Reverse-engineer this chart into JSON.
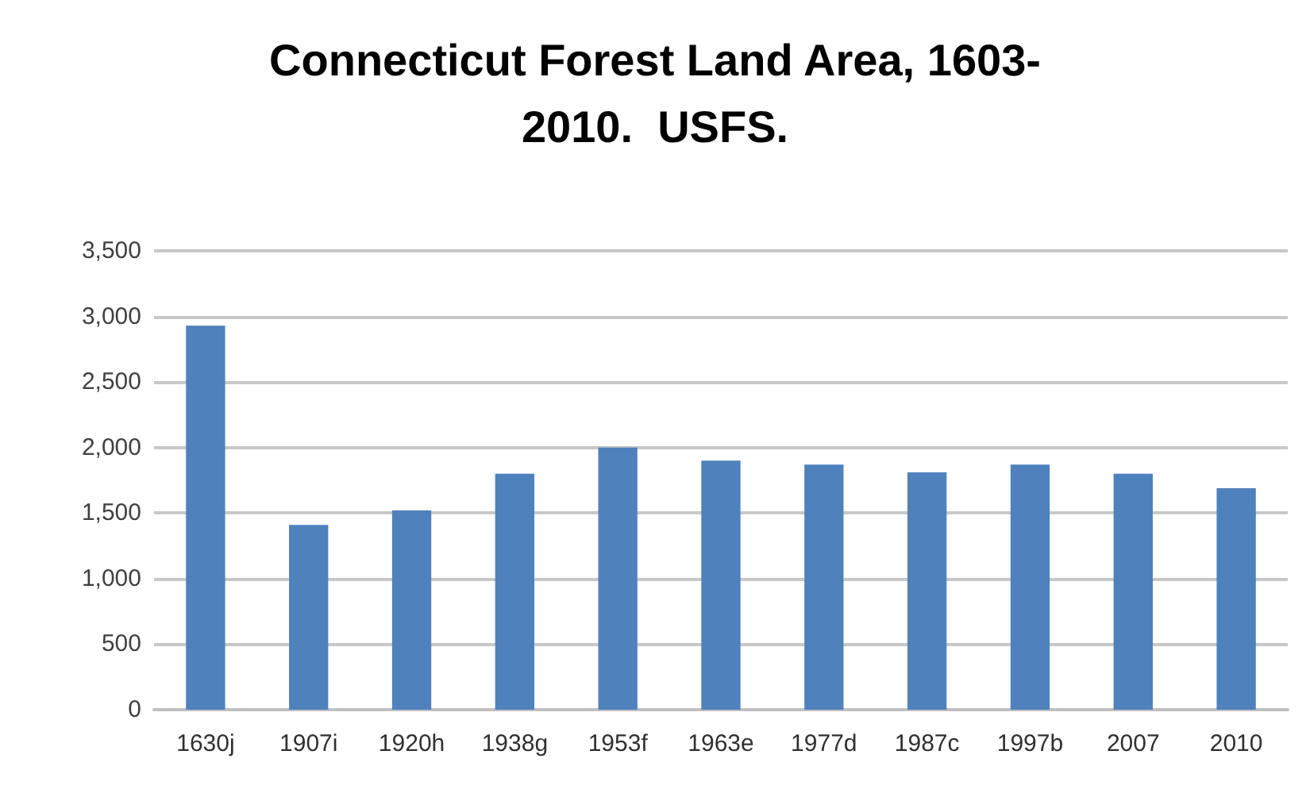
{
  "chart_data": {
    "type": "bar",
    "title": "Connecticut Forest Land Area, 1603-\n2010.  USFS.",
    "categories": [
      "1630j",
      "1907i",
      "1920h",
      "1938g",
      "1953f",
      "1963e",
      "1977d",
      "1987c",
      "1997b",
      "2007",
      "2010"
    ],
    "values": [
      2930,
      1410,
      1520,
      1800,
      2000,
      1900,
      1870,
      1810,
      1870,
      1800,
      1690
    ],
    "color": "#4f81bd",
    "ylim": [
      0,
      3500
    ],
    "yticks": [
      0,
      500,
      {
        "value": 1000,
        "label": "1,000"
      },
      {
        "value": 1500,
        "label": "1,500"
      },
      {
        "value": 2000,
        "label": "2,000"
      },
      {
        "value": 2500,
        "label": "2,500"
      },
      {
        "value": 3000,
        "label": "3,000"
      },
      {
        "value": 3500,
        "label": "3,500"
      }
    ],
    "grid": "y"
  }
}
